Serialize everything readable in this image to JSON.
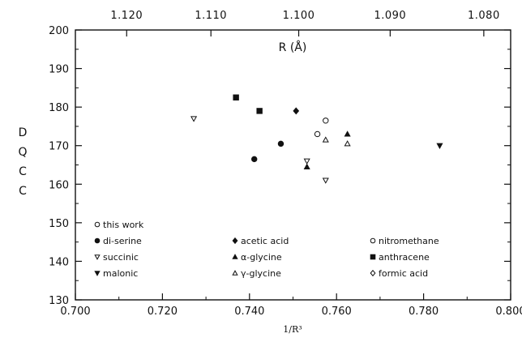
{
  "chart_data": {
    "type": "scatter",
    "xlabel": "1/R³",
    "ylabel": "DQCC",
    "top_axis_label": "R (Å)",
    "xlim": [
      0.7,
      0.8
    ],
    "ylim": [
      130,
      200
    ],
    "x_ticks": [
      "0.700",
      "0.720",
      "0.740",
      "0.760",
      "0.780",
      "0.800"
    ],
    "x_tick_values": [
      0.7,
      0.72,
      0.74,
      0.76,
      0.78,
      0.8
    ],
    "y_ticks": [
      "130",
      "140",
      "150",
      "160",
      "170",
      "180",
      "190",
      "200"
    ],
    "y_tick_values": [
      130,
      140,
      150,
      160,
      170,
      180,
      190,
      200
    ],
    "top_ticks": [
      "1.120",
      "1.110",
      "1.100",
      "1.090",
      "1.080"
    ],
    "top_tick_values": [
      0.71178,
      0.73114,
      0.75131,
      0.77232,
      0.79383
    ],
    "grid": false,
    "legend_position": "bottom-inside",
    "series": [
      {
        "name": "this work",
        "marker": "open-circle",
        "points": [
          [
            0.7556,
            173
          ],
          [
            0.7575,
            176.5
          ]
        ]
      },
      {
        "name": "di-serine",
        "marker": "filled-circle",
        "points": [
          [
            0.7411,
            166.5
          ],
          [
            0.7472,
            170.5
          ]
        ]
      },
      {
        "name": "succinic",
        "marker": "open-triangle-down",
        "points": [
          [
            0.7272,
            177
          ],
          [
            0.7532,
            166
          ],
          [
            0.7575,
            161
          ]
        ]
      },
      {
        "name": "malonic",
        "marker": "filled-triangle-down",
        "points": [
          [
            0.7837,
            170
          ]
        ]
      },
      {
        "name": "acetic acid",
        "marker": "filled-diamond",
        "points": [
          [
            0.7507,
            179
          ]
        ]
      },
      {
        "name": "α-glycine",
        "marker": "filled-triangle-up",
        "points": [
          [
            0.7532,
            164.5
          ],
          [
            0.7625,
            173
          ]
        ]
      },
      {
        "name": "γ-glycine",
        "marker": "open-triangle-up",
        "points": [
          [
            0.7575,
            171.5
          ],
          [
            0.7625,
            170.5
          ]
        ]
      },
      {
        "name": "nitromethane",
        "marker": "open-circle",
        "points": []
      },
      {
        "name": "anthracene",
        "marker": "filled-square",
        "points": [
          [
            0.7369,
            182.5
          ],
          [
            0.7423,
            179
          ]
        ]
      },
      {
        "name": "formic acid",
        "marker": "open-diamond",
        "points": []
      }
    ]
  }
}
